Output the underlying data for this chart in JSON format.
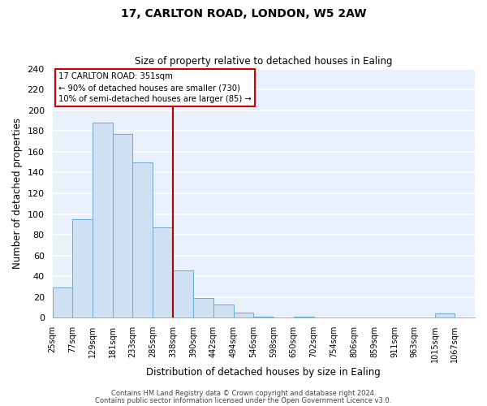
{
  "title": "17, CARLTON ROAD, LONDON, W5 2AW",
  "subtitle": "Size of property relative to detached houses in Ealing",
  "xlabel": "Distribution of detached houses by size in Ealing",
  "ylabel": "Number of detached properties",
  "bar_color": "#cfe0f3",
  "bar_edge_color": "#6aaad4",
  "bg_color": "#e8f0fb",
  "grid_color": "#ffffff",
  "vline_color": "#aa0000",
  "vline_x": 338,
  "bins": [
    25,
    77,
    129,
    181,
    233,
    285,
    338,
    390,
    442,
    494,
    546,
    598,
    650,
    702,
    754,
    806,
    859,
    911,
    963,
    1015,
    1067,
    1119
  ],
  "bar_heights": [
    29,
    95,
    188,
    177,
    150,
    87,
    46,
    19,
    13,
    5,
    1,
    0,
    1,
    0,
    0,
    0,
    0,
    0,
    0,
    4,
    0
  ],
  "tick_labels": [
    "25sqm",
    "77sqm",
    "129sqm",
    "181sqm",
    "233sqm",
    "285sqm",
    "338sqm",
    "390sqm",
    "442sqm",
    "494sqm",
    "546sqm",
    "598sqm",
    "650sqm",
    "702sqm",
    "754sqm",
    "806sqm",
    "859sqm",
    "911sqm",
    "963sqm",
    "1015sqm",
    "1067sqm"
  ],
  "ylim": [
    0,
    240
  ],
  "yticks": [
    0,
    20,
    40,
    60,
    80,
    100,
    120,
    140,
    160,
    180,
    200,
    220,
    240
  ],
  "legend_title": "17 CARLTON ROAD: 351sqm",
  "legend_line1": "← 90% of detached houses are smaller (730)",
  "legend_line2": "10% of semi-detached houses are larger (85) →",
  "legend_box_color": "#ffffff",
  "legend_box_edge_color": "#cc0000",
  "footer1": "Contains HM Land Registry data © Crown copyright and database right 2024.",
  "footer2": "Contains public sector information licensed under the Open Government Licence v3.0."
}
